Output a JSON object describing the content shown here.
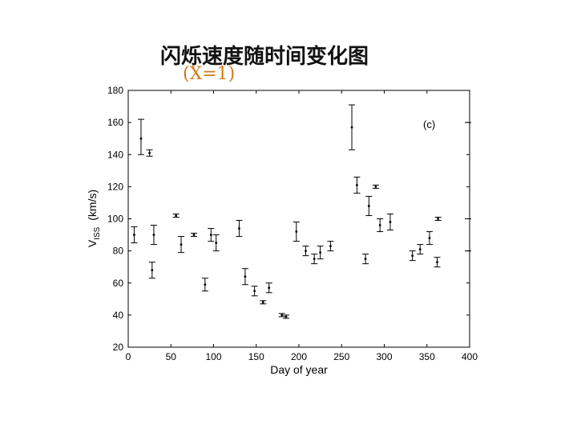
{
  "slide": {
    "title": "闪烁速度随时间变化图",
    "subtitle": "(X=1)"
  },
  "chart_data": {
    "type": "scatter",
    "panel_label": "(c)",
    "xlabel": "Day of year",
    "ylabel_main": "V",
    "ylabel_sub": "ISS",
    "ylabel_unit": "(km/s)",
    "xlim": [
      0,
      400
    ],
    "ylim": [
      20,
      180
    ],
    "xticks": [
      0,
      50,
      100,
      150,
      200,
      250,
      300,
      350,
      400
    ],
    "yticks": [
      20,
      40,
      60,
      80,
      100,
      120,
      140,
      160,
      180
    ],
    "grid": false,
    "points": [
      {
        "x": 7,
        "y": 90,
        "lo": 85,
        "hi": 95
      },
      {
        "x": 15,
        "y": 150,
        "lo": 140,
        "hi": 162
      },
      {
        "x": 25,
        "y": 141,
        "lo": 139,
        "hi": 143
      },
      {
        "x": 28,
        "y": 68,
        "lo": 63,
        "hi": 73
      },
      {
        "x": 30,
        "y": 90,
        "lo": 84,
        "hi": 96
      },
      {
        "x": 56,
        "y": 102,
        "lo": 101,
        "hi": 103
      },
      {
        "x": 62,
        "y": 84,
        "lo": 79,
        "hi": 89
      },
      {
        "x": 77,
        "y": 90,
        "lo": 89,
        "hi": 91
      },
      {
        "x": 90,
        "y": 59,
        "lo": 55,
        "hi": 63
      },
      {
        "x": 97,
        "y": 90,
        "lo": 86,
        "hi": 94
      },
      {
        "x": 103,
        "y": 85,
        "lo": 80,
        "hi": 90
      },
      {
        "x": 130,
        "y": 94,
        "lo": 89,
        "hi": 99
      },
      {
        "x": 137,
        "y": 64,
        "lo": 59,
        "hi": 69
      },
      {
        "x": 148,
        "y": 55,
        "lo": 52,
        "hi": 58
      },
      {
        "x": 158,
        "y": 48,
        "lo": 47,
        "hi": 49
      },
      {
        "x": 165,
        "y": 57,
        "lo": 54,
        "hi": 60
      },
      {
        "x": 180,
        "y": 40,
        "lo": 39,
        "hi": 41
      },
      {
        "x": 185,
        "y": 39,
        "lo": 38,
        "hi": 40
      },
      {
        "x": 197,
        "y": 92,
        "lo": 86,
        "hi": 98
      },
      {
        "x": 208,
        "y": 80,
        "lo": 77,
        "hi": 83
      },
      {
        "x": 218,
        "y": 75,
        "lo": 72,
        "hi": 78
      },
      {
        "x": 225,
        "y": 79,
        "lo": 75,
        "hi": 83
      },
      {
        "x": 237,
        "y": 83,
        "lo": 80,
        "hi": 86
      },
      {
        "x": 262,
        "y": 157,
        "lo": 143,
        "hi": 171
      },
      {
        "x": 268,
        "y": 121,
        "lo": 116,
        "hi": 126
      },
      {
        "x": 278,
        "y": 75,
        "lo": 72,
        "hi": 78
      },
      {
        "x": 282,
        "y": 108,
        "lo": 102,
        "hi": 114
      },
      {
        "x": 290,
        "y": 120,
        "lo": 119,
        "hi": 121
      },
      {
        "x": 295,
        "y": 96,
        "lo": 92,
        "hi": 100
      },
      {
        "x": 307,
        "y": 98,
        "lo": 93,
        "hi": 103
      },
      {
        "x": 333,
        "y": 77,
        "lo": 74,
        "hi": 80
      },
      {
        "x": 342,
        "y": 81,
        "lo": 78,
        "hi": 84
      },
      {
        "x": 353,
        "y": 88,
        "lo": 84,
        "hi": 92
      },
      {
        "x": 362,
        "y": 73,
        "lo": 70,
        "hi": 76
      },
      {
        "x": 363,
        "y": 100,
        "lo": 99,
        "hi": 101
      }
    ],
    "right_marks_y": [
      160,
      100,
      80
    ]
  }
}
